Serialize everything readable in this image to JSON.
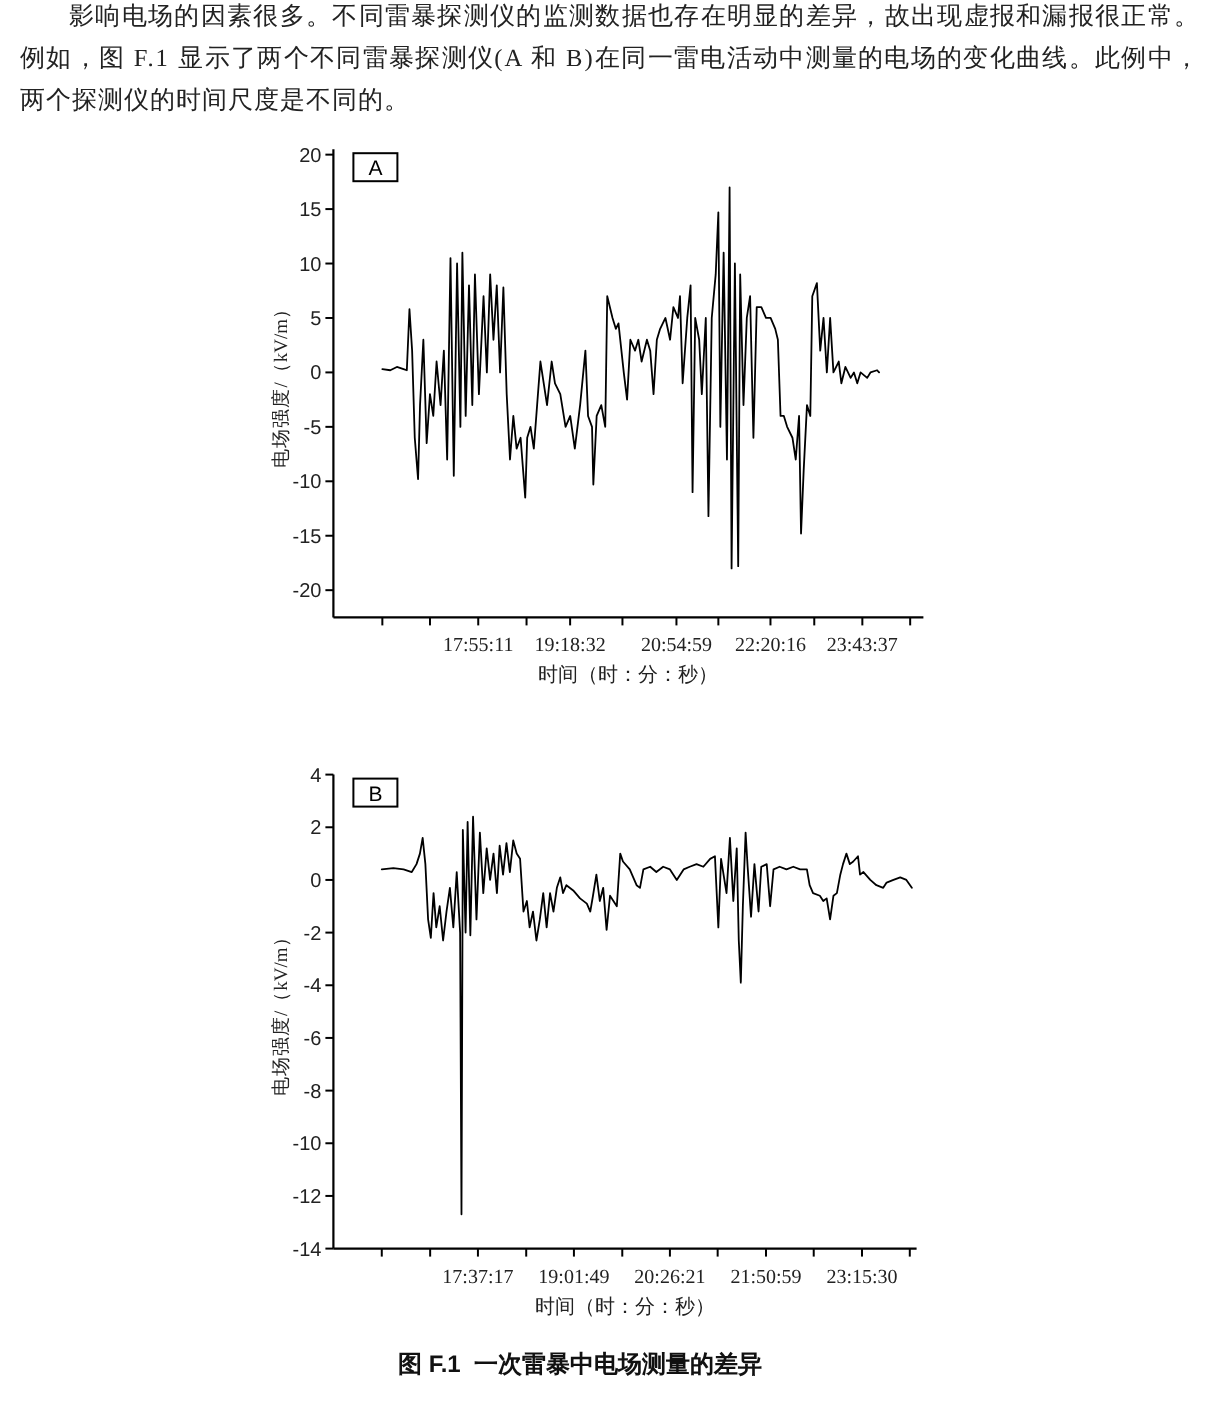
{
  "chart_data": [
    {
      "type": "line",
      "title": "A",
      "xlabel": "时间（时：分：秒）",
      "ylabel": "电场强度/（kV/m）",
      "annotations": [
        "影响电场的因素很多。不同雷暴探测仪的监测数据也存在明显的差异，故出现虚报和漏报很正常。例如，图 F.1 显示了两个不同雷暴探测仪(A 和 B)在同一雷电活动中测量的电场的变化曲线。此例中，两个探测仪的时间尺度是不同的。"
      ],
      "series": [
        {
          "color": "#000000",
          "x": [
            16.47,
            16.59,
            16.69,
            16.79,
            16.84,
            16.88,
            16.92,
            16.96,
            17.01,
            17.04,
            17.09,
            17.14,
            17.19,
            17.24,
            17.29,
            17.35,
            17.4,
            17.45,
            17.5,
            17.55,
            17.6,
            17.65,
            17.68,
            17.73,
            17.78,
            17.83,
            17.87,
            17.93,
            18.0,
            18.05,
            18.1,
            18.15,
            18.2,
            18.25,
            18.3,
            18.35,
            18.4,
            18.45,
            18.5,
            18.56,
            18.63,
            18.66,
            18.71,
            18.76,
            18.81,
            18.86,
            18.91,
            18.96,
            19.03,
            19.08,
            19.16,
            19.24,
            19.31,
            19.38,
            19.46,
            19.54,
            19.58,
            19.64,
            19.66,
            19.71,
            19.78,
            19.84,
            19.87,
            19.95,
            20.0,
            20.04,
            20.12,
            20.17,
            20.22,
            20.29,
            20.34,
            20.39,
            20.47,
            20.52,
            20.57,
            20.62,
            20.67,
            20.75,
            20.82,
            20.87,
            20.94,
            20.97,
            21.01,
            21.08,
            21.13,
            21.16,
            21.2,
            21.26,
            21.3,
            21.36,
            21.4,
            21.45,
            21.51,
            21.55,
            21.58,
            21.63,
            21.68,
            21.72,
            21.75,
            21.8,
            21.85,
            21.88,
            21.93,
            21.98,
            22.03,
            22.08,
            22.13,
            22.2,
            22.27,
            22.34,
            22.41,
            22.45,
            22.49,
            22.54,
            22.59,
            22.67,
            22.72,
            22.77,
            22.8,
            22.84,
            22.89,
            22.94,
            22.97,
            23.04,
            23.09,
            23.14,
            23.19,
            23.24,
            23.29,
            23.37,
            23.41,
            23.47,
            23.55,
            23.6,
            23.65,
            23.7,
            23.8,
            23.85,
            23.95,
            23.98
          ],
          "values": [
            0.3,
            0.2,
            0.5,
            0.3,
            0.2,
            5.8,
            2,
            -6,
            -9.8,
            -3,
            3,
            -6.5,
            -2,
            -4,
            1,
            -3,
            2,
            -8,
            10.5,
            -9.5,
            10,
            -5,
            11,
            -4,
            8,
            -3,
            9,
            -2,
            7,
            0,
            9,
            3,
            8,
            0,
            7.8,
            -2,
            -8,
            -4,
            -7,
            -6,
            -11.5,
            -6,
            -5,
            -7,
            -3,
            1,
            -1,
            -3,
            1,
            -1,
            -2,
            -5,
            -4,
            -7,
            -3,
            2,
            -4,
            -5,
            -10.3,
            -4,
            -3,
            -5,
            7,
            5,
            4,
            4.5,
            0,
            -2.5,
            3,
            2,
            3,
            1,
            3,
            2,
            -2,
            3,
            4,
            5,
            3,
            6,
            5,
            7,
            -1,
            5,
            8,
            -11,
            5,
            3,
            -2,
            5,
            -13.2,
            5,
            9,
            14.7,
            -5,
            11,
            -8,
            17,
            -18,
            10,
            -17.8,
            9,
            -3,
            5,
            7,
            -6,
            6,
            6,
            5,
            5,
            4,
            3,
            -4,
            -4,
            -5,
            -6,
            -8,
            -4,
            -14.8,
            -9,
            -3,
            -4,
            7,
            8.2,
            2,
            5,
            0,
            5,
            0,
            1,
            -1,
            0.5,
            -0.5,
            0,
            -1,
            0,
            -0.5,
            0,
            0.2,
            0
          ]
        }
      ],
      "xlim": [
        15.73,
        24.65
      ],
      "xticks": [
        {
          "value": 16.47,
          "label": null
        },
        {
          "value": 17.19,
          "label": null
        },
        {
          "value": 17.9197,
          "label": "17:55:11"
        },
        {
          "value": 18.65,
          "label": null
        },
        {
          "value": 19.3089,
          "label": "19:18:32"
        },
        {
          "value": 20.1,
          "label": null
        },
        {
          "value": 20.9164,
          "label": "20:54:59"
        },
        {
          "value": 21.55,
          "label": null
        },
        {
          "value": 22.3378,
          "label": "22:20:16"
        },
        {
          "value": 23.0,
          "label": null
        },
        {
          "value": 23.7269,
          "label": "23:43:37"
        },
        {
          "value": 24.45,
          "label": null
        }
      ],
      "ylim": [
        -22.5,
        20.5
      ],
      "yticks": [
        -20,
        -15,
        -10,
        -5,
        0,
        5,
        10,
        15,
        20
      ],
      "grid": false,
      "line_style": "solid"
    },
    {
      "type": "line",
      "title": "B",
      "xlabel": "时间（时：分：秒）",
      "ylabel": "电场强度/（kV/m）",
      "annotations": [
        "图 F.1  一次雷暴中电场测量的差异"
      ],
      "series": [
        {
          "color": "#000000",
          "x": [
            16.21,
            16.38,
            16.53,
            16.65,
            16.72,
            16.77,
            16.81,
            16.85,
            16.89,
            16.93,
            16.97,
            17.01,
            17.06,
            17.11,
            17.16,
            17.21,
            17.26,
            17.31,
            17.36,
            17.38,
            17.4,
            17.44,
            17.47,
            17.51,
            17.55,
            17.6,
            17.65,
            17.7,
            17.75,
            17.8,
            17.85,
            17.9,
            17.94,
            17.99,
            18.04,
            18.09,
            18.14,
            18.19,
            18.24,
            18.29,
            18.34,
            18.38,
            18.43,
            18.48,
            18.53,
            18.58,
            18.63,
            18.68,
            18.73,
            18.78,
            18.83,
            18.87,
            18.92,
            19.02,
            19.12,
            19.22,
            19.27,
            19.31,
            19.36,
            19.41,
            19.46,
            19.51,
            19.56,
            19.61,
            19.66,
            19.71,
            19.75,
            19.85,
            19.95,
            20.0,
            20.05,
            20.15,
            20.24,
            20.34,
            20.44,
            20.54,
            20.64,
            20.73,
            20.83,
            20.93,
            21.03,
            21.1,
            21.15,
            21.19,
            21.27,
            21.32,
            21.37,
            21.42,
            21.45,
            21.48,
            21.51,
            21.55,
            21.58,
            21.63,
            21.68,
            21.74,
            21.78,
            21.86,
            21.91,
            21.96,
            22.05,
            22.15,
            22.25,
            22.35,
            22.45,
            22.49,
            22.54,
            22.64,
            22.69,
            22.74,
            22.79,
            22.84,
            22.89,
            22.94,
            22.98,
            23.03,
            23.08,
            23.13,
            23.2,
            23.23,
            23.28,
            23.38,
            23.47,
            23.57,
            23.62,
            23.72,
            23.82,
            23.91,
            23.99
          ],
          "values": [
            0.4,
            0.45,
            0.4,
            0.3,
            0.6,
            1.0,
            1.6,
            0.6,
            -1.5,
            -2.2,
            -0.5,
            -1.8,
            -1.0,
            -2.3,
            -1.2,
            -0.3,
            -1.8,
            0.3,
            -2.0,
            -12.7,
            1.9,
            -2.0,
            2.2,
            -2.1,
            2.4,
            -1.5,
            1.8,
            -0.5,
            1.2,
            0,
            1.0,
            -0.5,
            1.3,
            0.2,
            1.4,
            0.3,
            1.5,
            1.0,
            0.8,
            -1.2,
            -0.8,
            -1.8,
            -1.2,
            -2.3,
            -1.5,
            -0.5,
            -1.8,
            -0.5,
            -1.2,
            -0.3,
            0.1,
            -0.5,
            -0.2,
            -0.4,
            -0.7,
            -0.9,
            -1.2,
            -0.6,
            0.2,
            -0.8,
            -0.3,
            -1.9,
            -0.6,
            -0.8,
            -1.0,
            1.0,
            0.7,
            0.4,
            -0.2,
            -0.3,
            0.4,
            0.5,
            0.3,
            0.5,
            0.4,
            0.0,
            0.4,
            0.5,
            0.6,
            0.5,
            0.8,
            0.9,
            -1.8,
            0.8,
            -0.5,
            1.6,
            -0.8,
            1.2,
            -2.3,
            -3.9,
            -1.0,
            1.8,
            0.5,
            -1.4,
            0.6,
            -1.2,
            0.5,
            0.6,
            -1.0,
            0.4,
            0.5,
            0.4,
            0.5,
            0.4,
            0.4,
            -0.2,
            -0.5,
            -0.6,
            -0.8,
            -0.7,
            -1.5,
            -0.6,
            -0.5,
            0.2,
            0.6,
            1.0,
            0.6,
            0.7,
            0.9,
            0.2,
            0.3,
            0.0,
            -0.2,
            -0.3,
            -0.1,
            0.0,
            0.1,
            0.0,
            -0.3
          ]
        }
      ],
      "xlim": [
        15.5,
        24.06
      ],
      "xticks": [
        {
          "value": 16.21,
          "label": null
        },
        {
          "value": 16.92,
          "label": null
        },
        {
          "value": 17.6214,
          "label": "17:37:17"
        },
        {
          "value": 18.33,
          "label": null
        },
        {
          "value": 19.0303,
          "label": "19:01:49"
        },
        {
          "value": 19.74,
          "label": null
        },
        {
          "value": 20.4392,
          "label": "20:26:21"
        },
        {
          "value": 21.14,
          "label": null
        },
        {
          "value": 21.8497,
          "label": "21:50:59"
        },
        {
          "value": 22.55,
          "label": null
        },
        {
          "value": 23.2583,
          "label": "23:15:30"
        },
        {
          "value": 23.96,
          "label": null
        }
      ],
      "ylim": [
        -14,
        4
      ],
      "yticks": [
        -14,
        -12,
        -10,
        -8,
        -6,
        -4,
        -2,
        0,
        2,
        4
      ],
      "grid": false,
      "line_style": "solid"
    }
  ]
}
